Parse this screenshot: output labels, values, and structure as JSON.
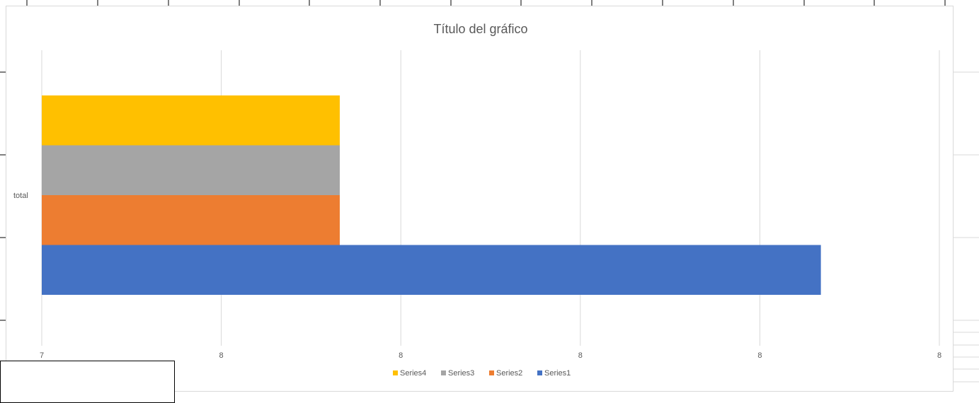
{
  "chart_data": {
    "type": "bar",
    "orientation": "horizontal",
    "title": "Título del gráfico",
    "categories": [
      "total"
    ],
    "x_tick_labels": [
      "7",
      "8",
      "8",
      "8",
      "8",
      "8"
    ],
    "xlim": [
      7,
      9.5
    ],
    "grid": true,
    "legend_position": "bottom",
    "series": [
      {
        "name": "Series1",
        "values": [
          9.17
        ],
        "color": "#4472C4"
      },
      {
        "name": "Series2",
        "values": [
          7.83
        ],
        "color": "#ED7D31"
      },
      {
        "name": "Series3",
        "values": [
          7.83
        ],
        "color": "#A5A5A5"
      },
      {
        "name": "Series4",
        "values": [
          7.83
        ],
        "color": "#FFC000"
      }
    ],
    "legend_order": [
      "Series4",
      "Series3",
      "Series2",
      "Series1"
    ]
  },
  "colors": {
    "gridline": "#d9d9d9",
    "text": "#595959",
    "sheet_lines": "#d9d9d9"
  }
}
